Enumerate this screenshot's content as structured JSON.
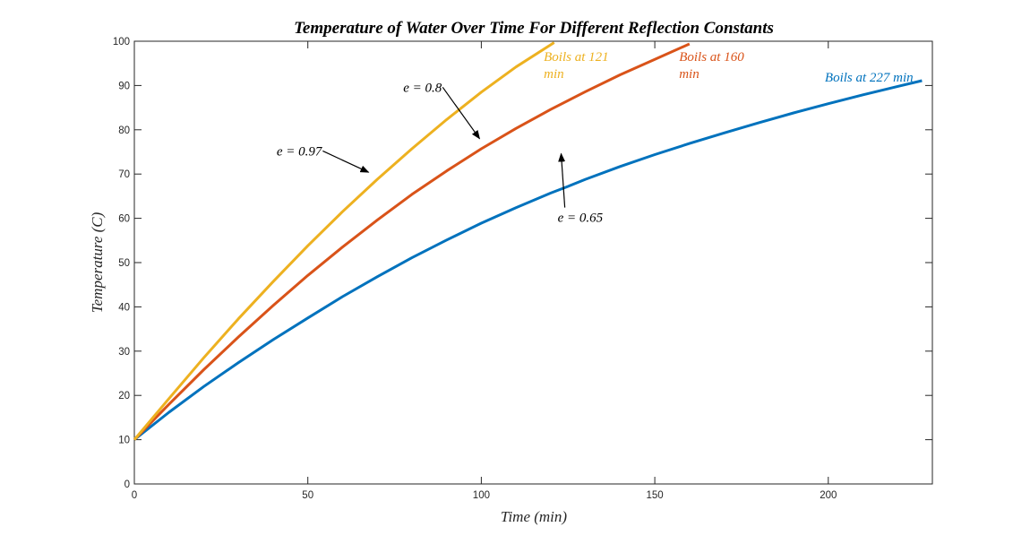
{
  "chart_data": {
    "type": "line",
    "title": "Temperature of Water Over Time For Different Reflection Constants",
    "xlabel": "Time (min)",
    "ylabel": "Temperature (C)",
    "xlim": [
      0,
      230
    ],
    "ylim": [
      0,
      100
    ],
    "xticks": [
      0,
      50,
      100,
      150,
      200
    ],
    "yticks": [
      0,
      10,
      20,
      30,
      40,
      50,
      60,
      70,
      80,
      90,
      100
    ],
    "grid": false,
    "series": [
      {
        "color": "#0072BD",
        "x": [
          0,
          10,
          20,
          30,
          40,
          50,
          60,
          70,
          80,
          90,
          100,
          110,
          120,
          125,
          130,
          140,
          150,
          160,
          170,
          180,
          190,
          200,
          210,
          220,
          227
        ],
        "y": [
          10,
          16.2,
          22.0,
          27.4,
          32.6,
          37.5,
          42.3,
          46.8,
          51.1,
          55.1,
          58.9,
          62.4,
          65.7,
          67.2,
          68.8,
          71.7,
          74.4,
          76.9,
          79.3,
          81.6,
          83.8,
          85.9,
          87.9,
          89.8,
          91.1
        ]
      },
      {
        "color": "#D95319",
        "x": [
          0,
          10,
          20,
          30,
          40,
          50,
          60,
          70,
          80,
          90,
          100,
          110,
          120,
          130,
          140,
          150,
          160
        ],
        "y": [
          10,
          18.0,
          25.8,
          33.2,
          40.3,
          47.1,
          53.5,
          59.6,
          65.4,
          70.7,
          75.7,
          80.3,
          84.6,
          88.6,
          92.4,
          95.9,
          99.4
        ]
      },
      {
        "color": "#EDB120",
        "x": [
          0,
          10,
          20,
          30,
          40,
          50,
          60,
          70,
          80,
          90,
          100,
          110,
          121
        ],
        "y": [
          10,
          19.3,
          28.5,
          37.3,
          45.7,
          53.8,
          61.5,
          68.8,
          75.7,
          82.3,
          88.5,
          94.2,
          99.7
        ]
      }
    ],
    "annotations": [
      {
        "text": "e = 0.97",
        "x": 41,
        "y": 74.2,
        "color": "#000000",
        "arrow_to": [
          67.5,
          70.4
        ]
      },
      {
        "text": "e = 0.8",
        "x": 77.5,
        "y": 88.6,
        "color": "#000000",
        "arrow_to": [
          99.5,
          78.0
        ]
      },
      {
        "text": "e = 0.65",
        "x": 122,
        "y": 59.2,
        "color": "#000000",
        "arrow_to": [
          123,
          74.6
        ]
      },
      {
        "text": "Boils at 121",
        "text2": "min",
        "x": 118,
        "y": 95.5,
        "color": "#EDB120"
      },
      {
        "text": "Boils at 160",
        "text2": "min",
        "x": 157,
        "y": 95.5,
        "color": "#D95319"
      },
      {
        "text": "Boils at 227 min",
        "x": 199,
        "y": 90.9,
        "color": "#0072BD"
      }
    ]
  }
}
